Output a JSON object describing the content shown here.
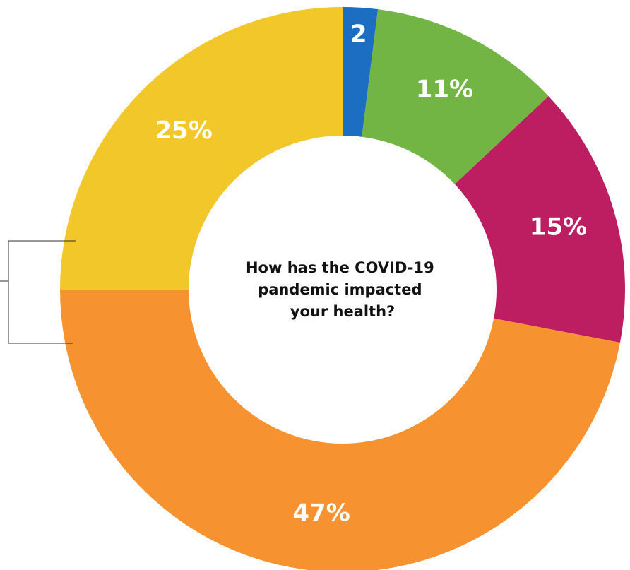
{
  "chart_data": {
    "type": "pie",
    "title": "How has the COVID-19 pandemic impacted your health?",
    "title_lines": [
      "How has the COVID-19",
      "pandemic impacted",
      "your health?"
    ],
    "donut": true,
    "start": "top",
    "direction": "clockwise",
    "slices": [
      {
        "value": 2,
        "label": "2",
        "color": "#1b6ec2"
      },
      {
        "value": 11,
        "label": "11%",
        "color": "#72b545"
      },
      {
        "value": 15,
        "label": "15%",
        "color": "#bd1e61"
      },
      {
        "value": 47,
        "label": "47%",
        "color": "#f6922f"
      },
      {
        "value": 25,
        "label": "25%",
        "color": "#f1c72a"
      }
    ],
    "legend": "none",
    "annotation": "bracket-left"
  }
}
